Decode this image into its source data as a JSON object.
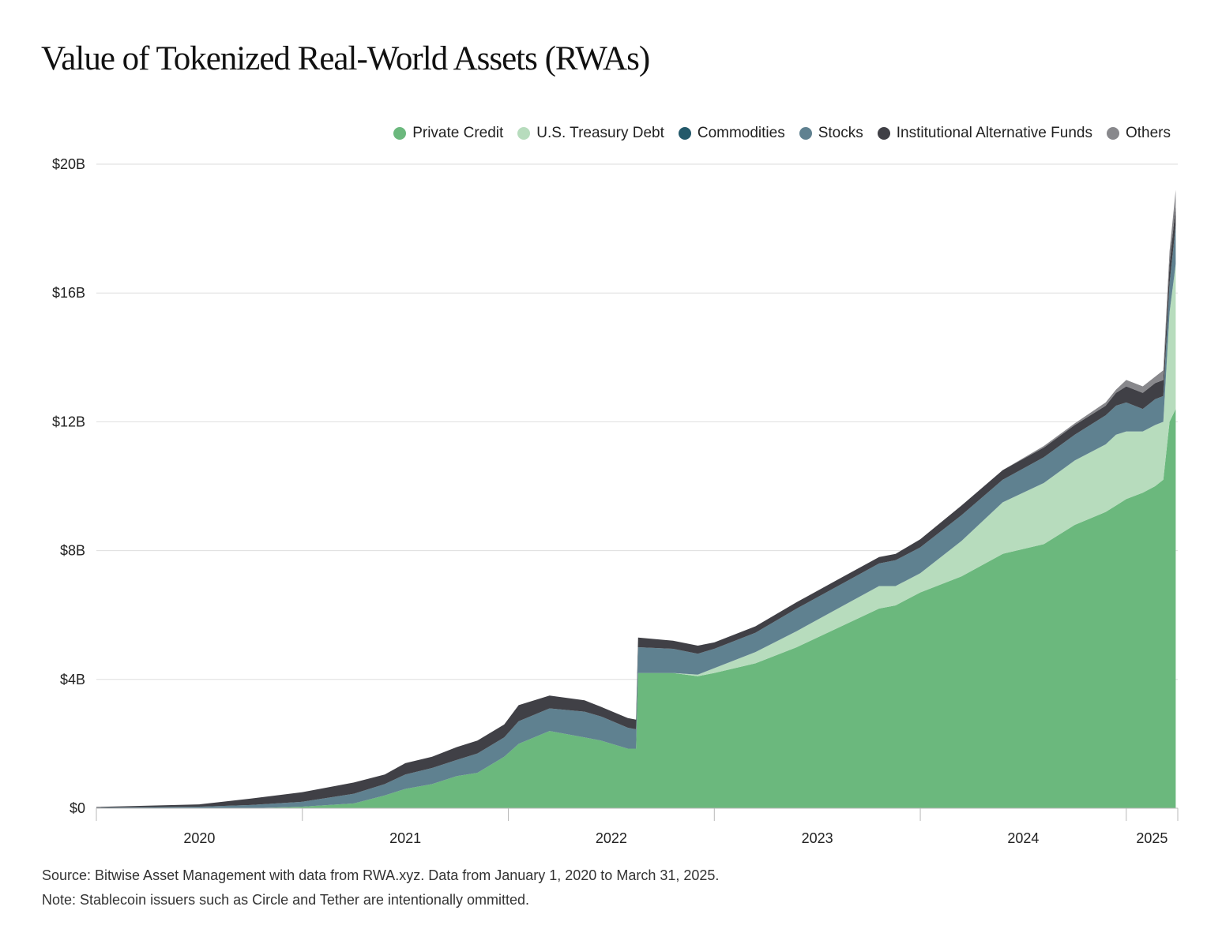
{
  "title": "Value of Tokenized Real-World Assets (RWAs)",
  "source": "Source: Bitwise Asset Management with data from RWA.xyz. Data from January 1, 2020 to March 31, 2025.",
  "note": "Note: Stablecoin issuers such as Circle and Tether are intentionally ommitted.",
  "chart_data": {
    "type": "area",
    "stacked": true,
    "x_unit": "year (decimal)",
    "y_unit": "USD billions",
    "ylim": [
      0,
      20
    ],
    "xlim": [
      2020.0,
      2025.25
    ],
    "y_ticks": [
      {
        "value": 0,
        "label": "$0"
      },
      {
        "value": 4,
        "label": "$4B"
      },
      {
        "value": 8,
        "label": "$8B"
      },
      {
        "value": 12,
        "label": "$12B"
      },
      {
        "value": 16,
        "label": "$16B"
      },
      {
        "value": 20,
        "label": "$20B"
      }
    ],
    "x_ticks": [
      "2020",
      "2021",
      "2022",
      "2023",
      "2024",
      "2025"
    ],
    "grid": "horizontal",
    "legend_position": "top-right",
    "x": [
      2020.0,
      2020.5,
      2020.75,
      2021.0,
      2021.25,
      2021.4,
      2021.5,
      2021.63,
      2021.75,
      2021.85,
      2021.98,
      2022.05,
      2022.2,
      2022.37,
      2022.45,
      2022.58,
      2022.62,
      2022.63,
      2022.8,
      2022.92,
      2023.0,
      2023.2,
      2023.4,
      2023.6,
      2023.8,
      2023.88,
      2024.0,
      2024.2,
      2024.4,
      2024.6,
      2024.75,
      2024.9,
      2024.95,
      2025.0,
      2025.08,
      2025.14,
      2025.18,
      2025.21,
      2025.24
    ],
    "series": [
      {
        "name": "Private Credit",
        "color": "#6bb87d",
        "values": [
          0.0,
          0.0,
          0.0,
          0.05,
          0.15,
          0.4,
          0.6,
          0.75,
          1.0,
          1.1,
          1.6,
          2.0,
          2.4,
          2.2,
          2.1,
          1.85,
          1.85,
          4.2,
          4.2,
          4.1,
          4.2,
          4.5,
          5.0,
          5.6,
          6.2,
          6.3,
          6.7,
          7.2,
          7.9,
          8.2,
          8.8,
          9.2,
          9.4,
          9.6,
          9.8,
          10.0,
          10.2,
          12.0,
          12.4
        ]
      },
      {
        "name": "U.S. Treasury Debt",
        "color": "#b7dcbd",
        "values": [
          0.0,
          0.0,
          0.0,
          0.0,
          0.0,
          0.0,
          0.0,
          0.0,
          0.0,
          0.0,
          0.0,
          0.0,
          0.0,
          0.0,
          0.0,
          0.0,
          0.0,
          0.0,
          0.0,
          0.05,
          0.15,
          0.35,
          0.5,
          0.6,
          0.7,
          0.6,
          0.6,
          1.1,
          1.6,
          1.9,
          2.0,
          2.1,
          2.2,
          2.1,
          1.9,
          1.9,
          1.8,
          3.4,
          4.5
        ]
      },
      {
        "name": "Commodities",
        "color": "#23596a",
        "values": [
          0.0,
          0.0,
          0.0,
          0.0,
          0.0,
          0.0,
          0.0,
          0.0,
          0.0,
          0.0,
          0.0,
          0.0,
          0.0,
          0.0,
          0.0,
          0.0,
          0.0,
          0.0,
          0.0,
          0.0,
          0.0,
          0.0,
          0.0,
          0.0,
          0.0,
          0.0,
          0.0,
          0.0,
          0.0,
          0.0,
          0.0,
          0.0,
          0.0,
          0.0,
          0.0,
          0.0,
          0.0,
          0.0,
          0.0
        ]
      },
      {
        "name": "Stocks",
        "color": "#5f8190",
        "values": [
          0.02,
          0.05,
          0.1,
          0.15,
          0.3,
          0.35,
          0.45,
          0.5,
          0.5,
          0.6,
          0.6,
          0.7,
          0.7,
          0.8,
          0.75,
          0.65,
          0.6,
          0.8,
          0.75,
          0.65,
          0.6,
          0.6,
          0.7,
          0.7,
          0.7,
          0.8,
          0.8,
          0.8,
          0.7,
          0.8,
          0.8,
          0.9,
          0.9,
          0.9,
          0.7,
          0.8,
          0.8,
          0.9,
          1.2
        ]
      },
      {
        "name": "Institutional Alternative Funds",
        "color": "#404046",
        "values": [
          0.02,
          0.07,
          0.2,
          0.3,
          0.35,
          0.3,
          0.35,
          0.35,
          0.4,
          0.4,
          0.4,
          0.5,
          0.4,
          0.35,
          0.3,
          0.3,
          0.3,
          0.3,
          0.25,
          0.25,
          0.2,
          0.2,
          0.2,
          0.2,
          0.2,
          0.2,
          0.25,
          0.3,
          0.3,
          0.3,
          0.3,
          0.3,
          0.4,
          0.5,
          0.5,
          0.5,
          0.5,
          0.6,
          0.6
        ]
      },
      {
        "name": "Others",
        "color": "#88888c",
        "values": [
          0.0,
          0.0,
          0.0,
          0.0,
          0.0,
          0.0,
          0.0,
          0.0,
          0.0,
          0.0,
          0.0,
          0.0,
          0.0,
          0.0,
          0.0,
          0.0,
          0.0,
          0.0,
          0.0,
          0.0,
          0.0,
          0.0,
          0.0,
          0.0,
          0.0,
          0.0,
          0.0,
          0.0,
          0.0,
          0.05,
          0.05,
          0.1,
          0.1,
          0.2,
          0.2,
          0.2,
          0.3,
          0.4,
          0.5
        ]
      }
    ]
  }
}
